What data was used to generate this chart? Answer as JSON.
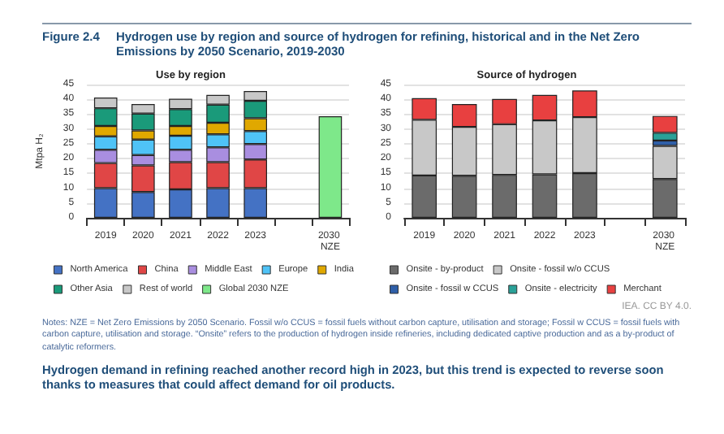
{
  "chart_data": [
    {
      "type": "bar",
      "title": "Use by region",
      "ylabel": "Mtpa H₂",
      "stacked": true,
      "grid": "y",
      "legend": "bottom",
      "annotations": [
        "Figure 2.4",
        "Hydrogen use by region and source of hydrogen for refining, historical and in the Net Zero Emissions by 2050 Scenario, 2019-2030"
      ],
      "categories": [
        "2019",
        "2020",
        "2021",
        "2022",
        "2023",
        null,
        "2030 NZE"
      ],
      "ylim": [
        0,
        45
      ],
      "yticks": [
        0,
        5,
        10,
        15,
        20,
        25,
        30,
        35,
        40,
        45
      ],
      "series": [
        {
          "name": "North America",
          "color": "#4472c4",
          "values": [
            10,
            8.7,
            9.6,
            10,
            10,
            null,
            null
          ]
        },
        {
          "name": "China",
          "color": "#e04646",
          "values": [
            8.5,
            9,
            9.2,
            8.8,
            9.7,
            null,
            null
          ]
        },
        {
          "name": "Middle East",
          "color": "#a98ee0",
          "values": [
            4.5,
            3.5,
            4.2,
            5,
            5.2,
            null,
            null
          ]
        },
        {
          "name": "Europe",
          "color": "#4fc3f7",
          "values": [
            4.5,
            5.2,
            4.7,
            4.4,
            4.4,
            null,
            null
          ]
        },
        {
          "name": "India",
          "color": "#e0a800",
          "values": [
            3.5,
            3.1,
            3.3,
            3.9,
            4.3,
            null,
            null
          ]
        },
        {
          "name": "Other Asia",
          "color": "#1a9a7a",
          "values": [
            6,
            5.7,
            5.7,
            6.1,
            5.9,
            null,
            null
          ]
        },
        {
          "name": "Rest of world",
          "color": "#c8c8c8",
          "values": [
            3.6,
            3.2,
            3.5,
            3.3,
            3.3,
            null,
            null
          ]
        },
        {
          "name": "Global 2030 NZE",
          "color": "#7ee88a",
          "values": [
            null,
            null,
            null,
            null,
            null,
            null,
            34.3
          ]
        }
      ]
    },
    {
      "type": "bar",
      "title": "Source of hydrogen",
      "stacked": true,
      "grid": "y",
      "legend": "bottom",
      "annotations": [
        "IEA. CC BY 4.0.",
        "Notes: NZE = Net Zero Emissions by 2050 Scenario. Fossil w/o CCUS = fossil fuels without carbon capture, utilisation and storage; Fossil w CCUS = fossil fuels with carbon capture, utilisation and storage. “Onsite” refers to the production of hydrogen inside refineries, including dedicated captive production and as a by-product of catalytic reformers.",
        "Hydrogen demand in refining reached another record high in 2023, but this trend is expected to reverse soon thanks to measures that could affect demand for oil products."
      ],
      "categories": [
        "2019",
        "2020",
        "2021",
        "2022",
        "2023",
        null,
        "2030 NZE"
      ],
      "ylim": [
        0,
        45
      ],
      "yticks": [
        0,
        5,
        10,
        15,
        20,
        25,
        30,
        35,
        40,
        45
      ],
      "series": [
        {
          "name": "Onsite - by-product",
          "color": "#6b6b6b",
          "values": [
            14.3,
            14.2,
            14.5,
            14.7,
            15.1,
            null,
            13.1
          ]
        },
        {
          "name": "Onsite - fossil w/o CCUS",
          "color": "#c8c8c8",
          "values": [
            18.8,
            16.5,
            17.1,
            18.2,
            18.9,
            null,
            11.2
          ]
        },
        {
          "name": "Onsite - fossil w CCUS",
          "color": "#2f5fa8",
          "values": [
            null,
            null,
            null,
            null,
            null,
            null,
            1.8
          ]
        },
        {
          "name": "Onsite - electricity",
          "color": "#2aa198",
          "values": [
            null,
            null,
            null,
            null,
            null,
            null,
            2.6
          ]
        },
        {
          "name": "Merchant",
          "color": "#e84040",
          "values": [
            7.3,
            7.7,
            8.5,
            8.6,
            9,
            null,
            5.7
          ]
        }
      ]
    }
  ]
}
